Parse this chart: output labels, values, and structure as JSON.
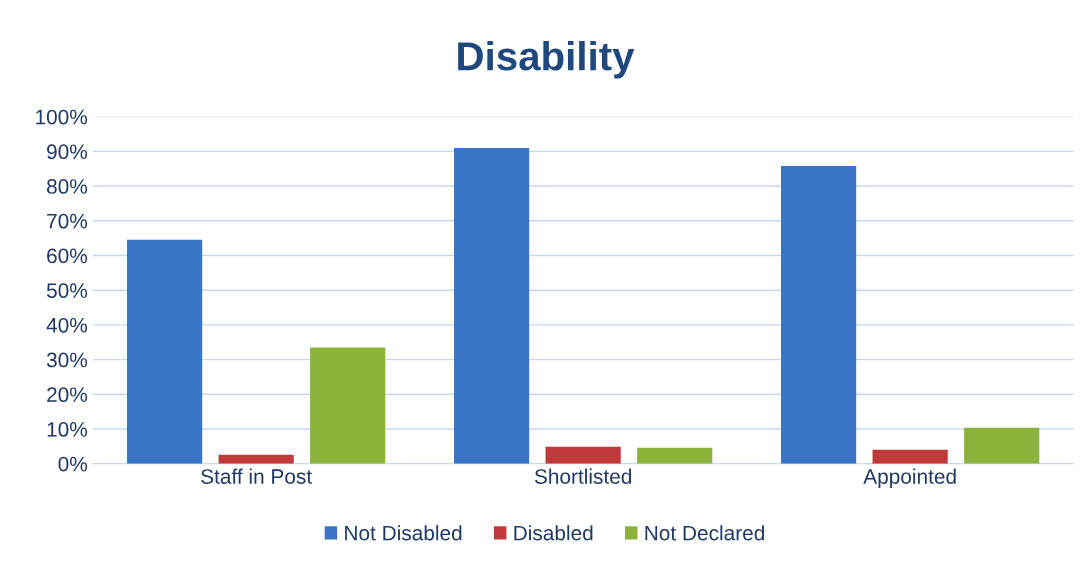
{
  "chart_data": {
    "type": "bar",
    "title": "Disability",
    "categories": [
      "Staff in Post",
      "Shortlisted",
      "Appointed"
    ],
    "series": [
      {
        "name": "Not Disabled",
        "color": "#3a76c4",
        "values": [
          64.5,
          91,
          85.8
        ]
      },
      {
        "name": "Disabled",
        "color": "#c0393b",
        "values": [
          2.6,
          4.9,
          4
        ]
      },
      {
        "name": "Not Declared",
        "color": "#8cb33c",
        "values": [
          33.5,
          4.6,
          10.4
        ]
      }
    ],
    "ylim": [
      0,
      100
    ],
    "yticks": [
      {
        "value": 0,
        "label": "0%"
      },
      {
        "value": 10,
        "label": "10%"
      },
      {
        "value": 20,
        "label": "20%"
      },
      {
        "value": 30,
        "label": "30%"
      },
      {
        "value": 40,
        "label": "40%"
      },
      {
        "value": 50,
        "label": "50%"
      },
      {
        "value": 60,
        "label": "60%"
      },
      {
        "value": 70,
        "label": "70%"
      },
      {
        "value": 80,
        "label": "80%"
      },
      {
        "value": 90,
        "label": "90%"
      },
      {
        "value": 100,
        "label": "100%"
      }
    ],
    "grid": "y",
    "legend": "bottom"
  }
}
